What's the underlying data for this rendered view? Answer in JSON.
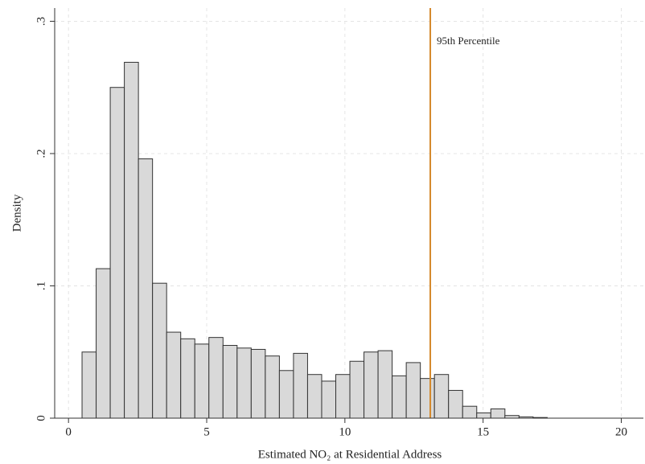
{
  "chart_data": {
    "type": "histogram",
    "x_label": "Estimated NO₂ at Residential Address",
    "y_label": "Density",
    "bins": [
      0.49,
      1.0,
      1.51,
      2.02,
      2.53,
      3.04,
      3.55,
      4.06,
      4.57,
      5.08,
      5.59,
      6.1,
      6.61,
      7.12,
      7.63,
      8.14,
      8.65,
      9.16,
      9.67,
      10.18,
      10.69,
      11.2,
      11.71,
      12.22,
      12.73,
      13.24,
      13.75,
      14.26,
      14.77,
      15.28,
      15.79,
      16.3,
      16.81,
      17.32
    ],
    "values": [
      0.05,
      0.113,
      0.25,
      0.269,
      0.196,
      0.102,
      0.065,
      0.06,
      0.056,
      0.061,
      0.055,
      0.053,
      0.052,
      0.047,
      0.036,
      0.049,
      0.033,
      0.028,
      0.033,
      0.043,
      0.05,
      0.051,
      0.032,
      0.042,
      0.03,
      0.033,
      0.021,
      0.009,
      0.004,
      0.007,
      0.002,
      0.001,
      0.0005
    ],
    "color": "#d9d9d9",
    "xlim": [
      -0.5,
      20.8
    ],
    "xticks": [
      0,
      5,
      10,
      15,
      20
    ],
    "ylim": [
      0,
      0.31
    ],
    "yticks": [
      {
        "value": 0,
        "label": "0"
      },
      {
        "value": 0.1,
        "label": ".1"
      },
      {
        "value": 0.2,
        "label": ".2"
      },
      {
        "value": 0.3,
        "label": ".3"
      }
    ],
    "grid": true,
    "reference_line": {
      "value": 13.09,
      "label": "95th Percentile",
      "color": "#d4882a"
    }
  }
}
